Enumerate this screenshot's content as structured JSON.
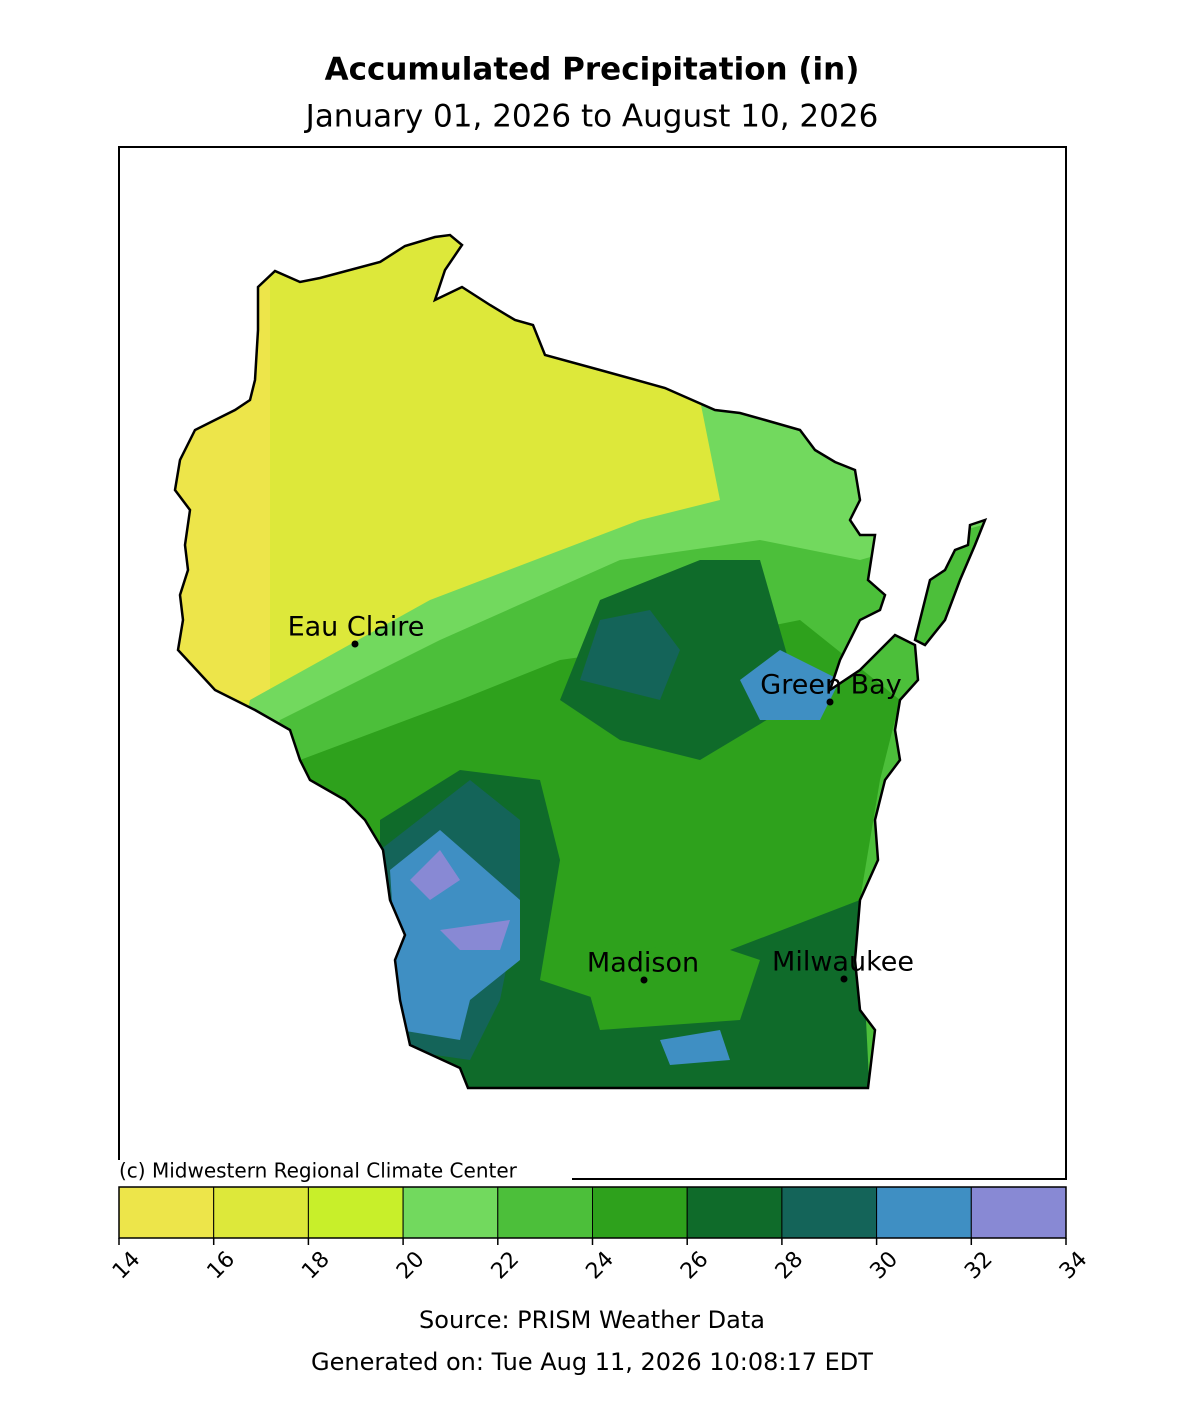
{
  "title": "Accumulated Precipitation (in)",
  "subtitle": "January 01, 2026 to August 10, 2026",
  "cities": [
    "Eau Claire",
    "Green Bay",
    "Madison",
    "Milwaukee"
  ],
  "credit": "(c) Midwestern Regional Climate Center",
  "colorbar": {
    "ticks": [
      14,
      16,
      18,
      20,
      22,
      24,
      26,
      28,
      30,
      32,
      34
    ],
    "colors": [
      "#ede54a",
      "#dde83a",
      "#c8ef2a",
      "#72d95e",
      "#4cbf3a",
      "#2ea11c",
      "#0f6b2a",
      "#146459",
      "#3f8fc3",
      "#8889d4"
    ]
  },
  "source": "Source: PRISM Weather Data",
  "generated": "Generated on: Tue Aug 11, 2026 10:08:17 EDT"
}
